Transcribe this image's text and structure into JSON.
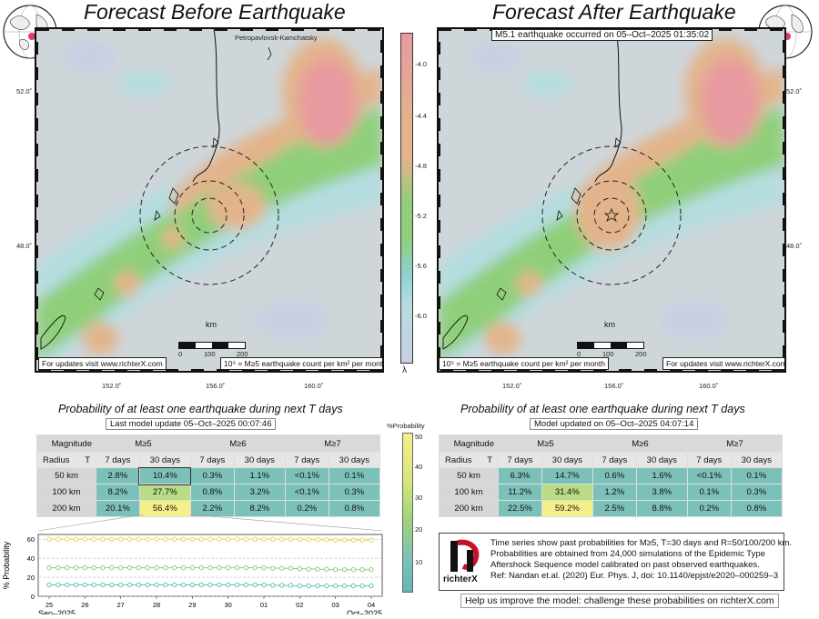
{
  "left": {
    "title": "Forecast Before Earthquake",
    "place_label": "Petropavlovsk-Kamchatsky",
    "note": "For updates visit www.richterX.com",
    "units_note": "10⁵ = M≥5 earthquake count per km² per month",
    "lat_ticks": [
      "52.0˚",
      "48.0˚"
    ],
    "lon_ticks": [
      "152.0˚",
      "156.0˚",
      "160.0˚"
    ]
  },
  "right": {
    "title": "Forecast After Earthquake",
    "event_label": "M5.1 earthquake occurred on 05–Oct–2025 01:35:02",
    "note": "For updates visit www.richterX.com",
    "units_note": "10⁵ = M≥5 earthquake count per km² per month",
    "lat_ticks": [
      "52.0˚",
      "48.0˚"
    ],
    "lon_ticks": [
      "152.0˚",
      "156.0˚",
      "160.0˚"
    ]
  },
  "scalebar": {
    "unit": "km",
    "ticks": [
      "0",
      "100",
      "200"
    ]
  },
  "colorbar": {
    "ticks": [
      "-4.0",
      "-4.4",
      "-4.8",
      "-5.2",
      "-5.6",
      "-6.0"
    ],
    "symbol": "λ"
  },
  "colors": {
    "high": "#e79a9f",
    "mid": "#e3b48b",
    "green": "#8fcf7a",
    "cyan": "#8fd3d8",
    "low": "#c7d0e2",
    "table_teal": "#7cc1b9",
    "table_yellow": "#f6f08a"
  },
  "prob_left": {
    "title": "Probability of at least one earthquake during next T days",
    "update": "Last model update 05–Oct–2025 00:07:46",
    "hdr_magnitude": "Magnitude",
    "hdr_radius": "Radius",
    "hdr_T": "T",
    "mags": [
      "M≥5",
      "M≥6",
      "M≥7"
    ],
    "periods": [
      "7 days",
      "30 days",
      "7 days",
      "30 days",
      "7 days",
      "30 days"
    ],
    "rows": [
      {
        "radius": "50 km",
        "cells": [
          "2.8%",
          "10.4%",
          "0.3%",
          "1.1%",
          "<0.1%",
          "0.1%"
        ]
      },
      {
        "radius": "100 km",
        "cells": [
          "8.2%",
          "27.7%",
          "0.8%",
          "3.2%",
          "<0.1%",
          "0.3%"
        ]
      },
      {
        "radius": "200 km",
        "cells": [
          "20.1%",
          "56.4%",
          "2.2%",
          "8.2%",
          "0.2%",
          "0.8%"
        ]
      }
    ]
  },
  "prob_right": {
    "title": "Probability of at least one earthquake during next T days",
    "update": "Model updated on 05–Oct–2025 04:07:14",
    "hdr_magnitude": "Magnitude",
    "hdr_radius": "Radius",
    "hdr_T": "T",
    "mags": [
      "M≥5",
      "M≥6",
      "M≥7"
    ],
    "periods": [
      "7 days",
      "30 days",
      "7 days",
      "30 days",
      "7 days",
      "30 days"
    ],
    "rows": [
      {
        "radius": "50 km",
        "cells": [
          "6.3%",
          "14.7%",
          "0.6%",
          "1.6%",
          "<0.1%",
          "0.1%"
        ]
      },
      {
        "radius": "100 km",
        "cells": [
          "11.2%",
          "31.4%",
          "1.2%",
          "3.8%",
          "0.1%",
          "0.3%"
        ]
      },
      {
        "radius": "200 km",
        "cells": [
          "22.5%",
          "59.2%",
          "2.5%",
          "8.8%",
          "0.2%",
          "0.8%"
        ]
      }
    ]
  },
  "prob_colorbar": {
    "label": "%Probability",
    "ticks": [
      "50",
      "40",
      "30",
      "20",
      "10"
    ]
  },
  "chart_data": {
    "type": "line",
    "ylabel": "% Probability",
    "ylim": [
      0,
      65
    ],
    "yticks": [
      "60",
      "40",
      "20",
      "0"
    ],
    "x": [
      "25",
      "26",
      "27",
      "28",
      "29",
      "30",
      "01",
      "02",
      "03",
      "04"
    ],
    "x_months": [
      "Sep–2025",
      "Oct–2025"
    ],
    "series": [
      {
        "values": [
          60,
          60,
          60,
          60,
          60,
          60,
          60,
          60,
          59,
          59
        ],
        "color": "#e8d84a"
      },
      {
        "values": [
          30,
          30,
          30,
          30,
          30,
          30,
          30,
          29,
          28,
          28
        ],
        "color": "#8fcf7a"
      },
      {
        "values": [
          12,
          12,
          12,
          12,
          12,
          12,
          12,
          11,
          11,
          11
        ],
        "color": "#63c1b9"
      }
    ]
  },
  "legend": {
    "logo_text": "richterX",
    "lines": [
      "Time series show past probabilities for M≥5, T=30 days and R=50/100/200 km.",
      "Probabilities are obtained from 24,000 simulations of the Epidemic Type",
      "Aftershock Sequence model calibrated on past observed earthquakes.",
      "Ref: Nandan et.al. (2020) Eur. Phys. J, doi: 10.1140/epjst/e2020–000259–3"
    ]
  },
  "help_text": "Help us improve the model: challenge these probabilities on richterX.com"
}
